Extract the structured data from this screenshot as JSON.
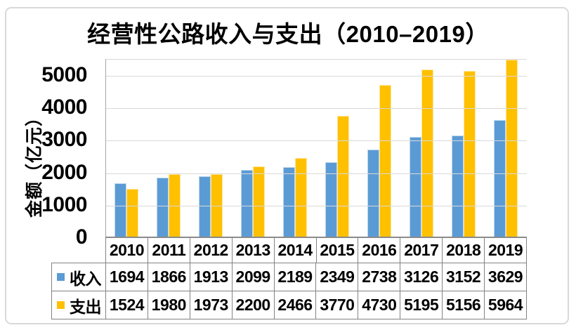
{
  "chart_data": {
    "type": "bar",
    "title": "经营性公路收入与支出（2010–2019）",
    "ylabel": "金额（亿元）",
    "xlabel": "",
    "categories": [
      "2010",
      "2011",
      "2012",
      "2013",
      "2014",
      "2015",
      "2016",
      "2017",
      "2018",
      "2019"
    ],
    "series": [
      {
        "name": "收入",
        "color": "#5B9BD5",
        "values": [
          1694,
          1866,
          1913,
          2099,
          2189,
          2349,
          2738,
          3126,
          3152,
          3629
        ]
      },
      {
        "name": "支出",
        "color": "#FFC000",
        "values": [
          1524,
          1980,
          1973,
          2200,
          2466,
          3770,
          4730,
          5195,
          5156,
          5964
        ]
      }
    ],
    "ylim": [
      0,
      5500
    ],
    "yticks": [
      0,
      1000,
      2000,
      3000,
      4000,
      5000
    ],
    "grid": true,
    "legend_position": "data-table-left",
    "data_table_shown": true
  },
  "style": {
    "income_color": "#5B9BD5",
    "expense_color": "#FFC000",
    "gridline_color": "#D9D9D9",
    "axis_line_color": "#A6A6A6",
    "xaxis_line_color": "#8A8A8A",
    "table_border_color": "#828282",
    "frame_border_color": "#D9D9D9",
    "text_color": "#000000",
    "background_color": "#FFFFFF"
  }
}
